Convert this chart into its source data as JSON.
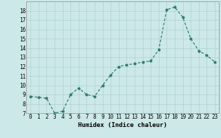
{
  "x": [
    0,
    1,
    2,
    3,
    4,
    5,
    6,
    7,
    8,
    9,
    10,
    11,
    12,
    13,
    14,
    15,
    16,
    17,
    18,
    19,
    20,
    21,
    22,
    23
  ],
  "y": [
    8.8,
    8.7,
    8.6,
    7.0,
    7.2,
    9.0,
    9.7,
    9.0,
    8.8,
    10.0,
    11.1,
    12.0,
    12.2,
    12.3,
    12.5,
    12.6,
    13.8,
    18.1,
    18.4,
    17.3,
    15.0,
    13.7,
    13.2,
    12.5
  ],
  "title": "",
  "xlabel": "Humidex (Indice chaleur)",
  "ylabel": "",
  "ylim": [
    7,
    19
  ],
  "xlim": [
    -0.5,
    23.5
  ],
  "yticks": [
    7,
    8,
    9,
    10,
    11,
    12,
    13,
    14,
    15,
    16,
    17,
    18
  ],
  "xticks": [
    0,
    1,
    2,
    3,
    4,
    5,
    6,
    7,
    8,
    9,
    10,
    11,
    12,
    13,
    14,
    15,
    16,
    17,
    18,
    19,
    20,
    21,
    22,
    23
  ],
  "line_color": "#2d7a72",
  "marker_color": "#2d7a72",
  "bg_color": "#cce8e8",
  "grid_color": "#b0d0d0",
  "label_fontsize": 6.5,
  "tick_fontsize": 5.5
}
